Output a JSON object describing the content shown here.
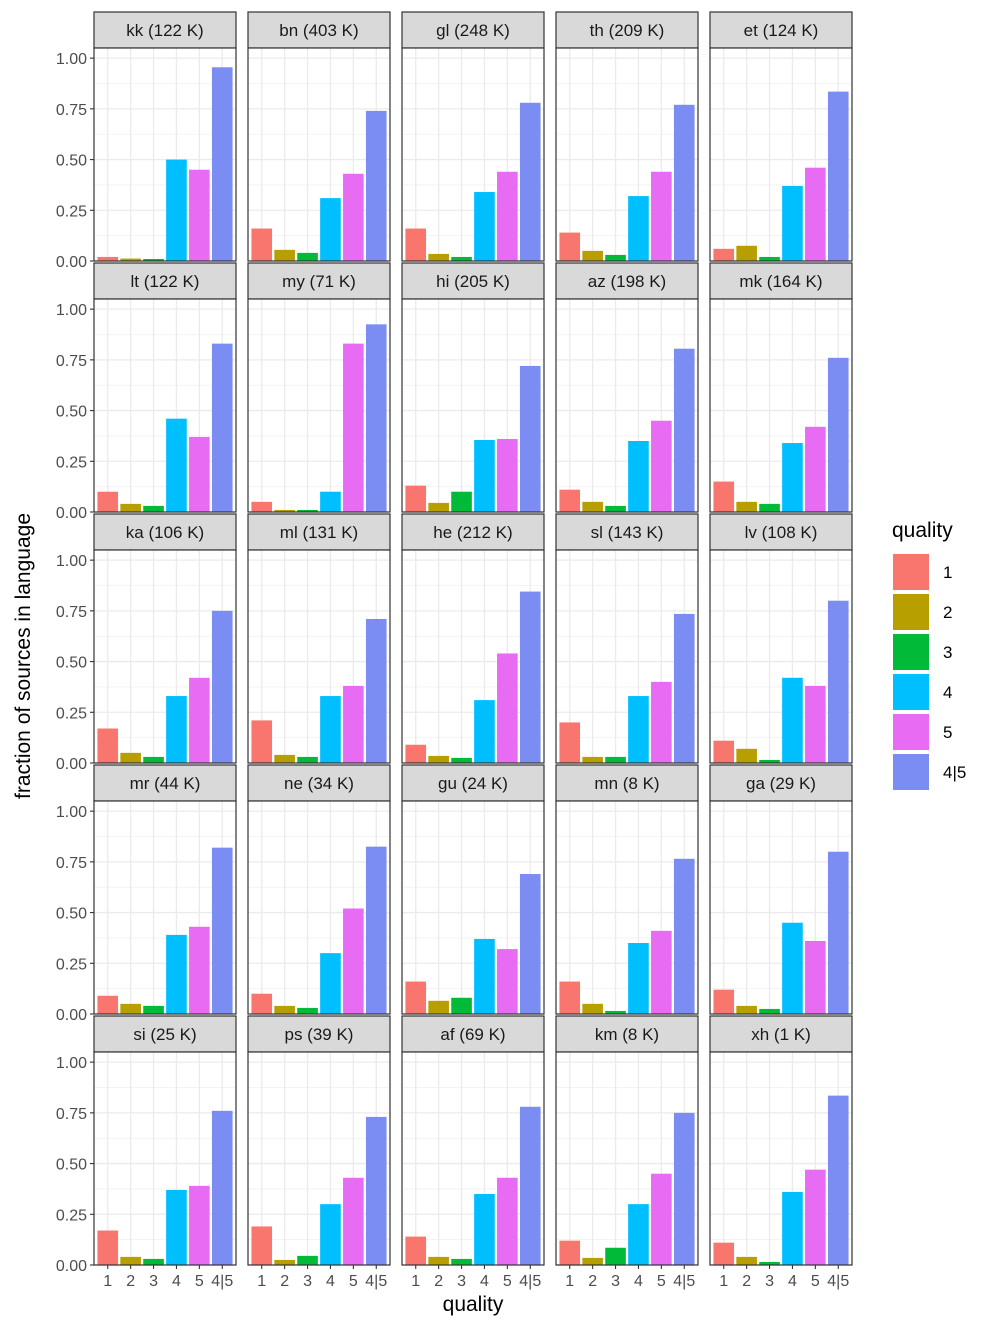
{
  "chart_data": {
    "type": "bar",
    "xlabel": "quality",
    "ylabel": "fraction of sources in language",
    "ylim": [
      0,
      1.05
    ],
    "yticks": [
      0,
      0.25,
      0.5,
      0.75,
      1.0
    ],
    "ytick_labels": [
      "0.00",
      "0.25",
      "0.50",
      "0.75",
      "1.00"
    ],
    "categories": [
      "1",
      "2",
      "3",
      "4",
      "5",
      "4|5"
    ],
    "legend": {
      "title": "quality",
      "placement": "right",
      "entries": [
        "1",
        "2",
        "3",
        "4",
        "5",
        "4|5"
      ]
    },
    "colors": {
      "1": "#F8766D",
      "2": "#B79F00",
      "3": "#00BA38",
      "4": "#00BFFF",
      "5": "#E76BF3",
      "4|5": "#7B8CF3"
    },
    "grid": true,
    "panels": [
      {
        "label": "kk (122 K)",
        "values": [
          0.02,
          0.012,
          0.01,
          0.5,
          0.45,
          0.955
        ]
      },
      {
        "label": "bn (403 K)",
        "values": [
          0.16,
          0.055,
          0.04,
          0.31,
          0.43,
          0.74
        ]
      },
      {
        "label": "gl (248 K)",
        "values": [
          0.16,
          0.035,
          0.02,
          0.34,
          0.44,
          0.78
        ]
      },
      {
        "label": "th (209 K)",
        "values": [
          0.14,
          0.05,
          0.03,
          0.32,
          0.44,
          0.77
        ]
      },
      {
        "label": "et (124 K)",
        "values": [
          0.06,
          0.075,
          0.02,
          0.37,
          0.46,
          0.835
        ]
      },
      {
        "label": "lt (122 K)",
        "values": [
          0.1,
          0.04,
          0.03,
          0.46,
          0.37,
          0.83
        ]
      },
      {
        "label": "my (71 K)",
        "values": [
          0.05,
          0.01,
          0.01,
          0.1,
          0.83,
          0.925
        ]
      },
      {
        "label": "hi (205 K)",
        "values": [
          0.13,
          0.045,
          0.1,
          0.355,
          0.36,
          0.72
        ]
      },
      {
        "label": "az (198 K)",
        "values": [
          0.11,
          0.05,
          0.03,
          0.35,
          0.45,
          0.805
        ]
      },
      {
        "label": "mk (164 K)",
        "values": [
          0.15,
          0.05,
          0.04,
          0.34,
          0.42,
          0.76
        ]
      },
      {
        "label": "ka (106 K)",
        "values": [
          0.17,
          0.05,
          0.03,
          0.33,
          0.42,
          0.75
        ]
      },
      {
        "label": "ml (131 K)",
        "values": [
          0.21,
          0.04,
          0.03,
          0.33,
          0.38,
          0.71
        ]
      },
      {
        "label": "he (212 K)",
        "values": [
          0.09,
          0.035,
          0.025,
          0.31,
          0.54,
          0.845
        ]
      },
      {
        "label": "sl (143 K)",
        "values": [
          0.2,
          0.03,
          0.03,
          0.33,
          0.4,
          0.735
        ]
      },
      {
        "label": "lv (108 K)",
        "values": [
          0.11,
          0.07,
          0.015,
          0.42,
          0.38,
          0.8
        ]
      },
      {
        "label": "mr (44 K)",
        "values": [
          0.09,
          0.05,
          0.04,
          0.39,
          0.43,
          0.82
        ]
      },
      {
        "label": "ne (34 K)",
        "values": [
          0.1,
          0.04,
          0.03,
          0.3,
          0.52,
          0.825
        ]
      },
      {
        "label": "gu (24 K)",
        "values": [
          0.16,
          0.065,
          0.08,
          0.37,
          0.32,
          0.69
        ]
      },
      {
        "label": "mn (8 K)",
        "values": [
          0.16,
          0.05,
          0.015,
          0.35,
          0.41,
          0.765
        ]
      },
      {
        "label": "ga (29 K)",
        "values": [
          0.12,
          0.04,
          0.025,
          0.45,
          0.36,
          0.8
        ]
      },
      {
        "label": "si (25 K)",
        "values": [
          0.17,
          0.04,
          0.03,
          0.37,
          0.39,
          0.76
        ]
      },
      {
        "label": "ps (39 K)",
        "values": [
          0.19,
          0.025,
          0.045,
          0.3,
          0.43,
          0.73
        ]
      },
      {
        "label": "af (69 K)",
        "values": [
          0.14,
          0.04,
          0.03,
          0.35,
          0.43,
          0.78
        ]
      },
      {
        "label": "km (8 K)",
        "values": [
          0.12,
          0.035,
          0.085,
          0.3,
          0.45,
          0.75
        ]
      },
      {
        "label": "xh (1 K)",
        "values": [
          0.11,
          0.04,
          0.015,
          0.36,
          0.47,
          0.835
        ]
      }
    ]
  }
}
